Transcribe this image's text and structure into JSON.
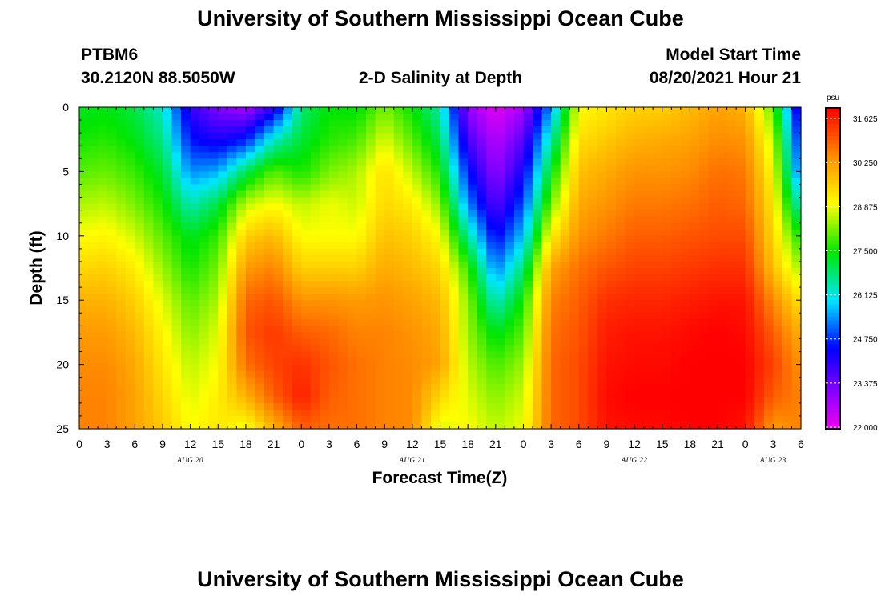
{
  "title_top": "University of Southern Mississippi Ocean Cube",
  "title_bottom": "University of Southern Mississippi Ocean Cube",
  "station": {
    "id": "PTBM6",
    "location": "30.2120N  88.5050W"
  },
  "model": {
    "label": "Model Start Time",
    "time": "08/20/2021 Hour 21"
  },
  "chart_data": {
    "type": "heatmap",
    "title": "2-D Salinity at Depth",
    "xlabel": "Forecast Time(Z)",
    "ylabel": "Depth (ft)",
    "x_range_hours": [
      0,
      78
    ],
    "ylim": [
      0,
      25
    ],
    "y_ticks": [
      "0",
      "5",
      "10",
      "15",
      "20",
      "25"
    ],
    "x_ticks": [
      "0",
      "3",
      "6",
      "9",
      "12",
      "15",
      "18",
      "21",
      "0",
      "3",
      "6",
      "9",
      "12",
      "15",
      "18",
      "21",
      "0",
      "3",
      "6",
      "9",
      "12",
      "15",
      "18",
      "21",
      "0",
      "3",
      "6"
    ],
    "day_labels": [
      {
        "label": "AUG 20",
        "hour": 12
      },
      {
        "label": "AUG 21",
        "hour": 36
      },
      {
        "label": "AUG 22",
        "hour": 60
      },
      {
        "label": "AUG 23",
        "hour": 75
      }
    ],
    "colorbar": {
      "unit": "psu",
      "min": 22.0,
      "max": 32.0,
      "tick_labels": [
        "22.000",
        "23.375",
        "24.750",
        "26.125",
        "27.500",
        "28.875",
        "30.250",
        "31.625"
      ]
    },
    "salinity_profiles_psu": {
      "depths_ft": [
        0,
        2.5,
        5,
        7.5,
        10,
        12.5,
        15,
        17.5,
        20,
        22.5,
        25
      ],
      "columns": [
        {
          "hour": 0,
          "values": [
            27.3,
            27.6,
            28.0,
            28.5,
            29.0,
            29.5,
            30.0,
            30.3,
            30.5,
            30.6,
            30.6
          ]
        },
        {
          "hour": 3,
          "values": [
            27.4,
            27.7,
            28.1,
            28.6,
            29.1,
            29.6,
            30.0,
            30.3,
            30.5,
            30.6,
            30.6
          ]
        },
        {
          "hour": 6,
          "values": [
            27.1,
            27.4,
            27.8,
            28.2,
            28.7,
            29.2,
            29.6,
            29.9,
            30.1,
            30.2,
            30.2
          ]
        },
        {
          "hour": 9,
          "values": [
            26.3,
            26.7,
            27.2,
            27.6,
            28.0,
            28.4,
            28.8,
            29.1,
            29.3,
            29.5,
            29.7
          ]
        },
        {
          "hour": 12,
          "values": [
            24.0,
            24.6,
            25.4,
            26.4,
            27.3,
            27.6,
            28.0,
            28.3,
            28.6,
            28.8,
            29.0
          ]
        },
        {
          "hour": 15,
          "values": [
            23.2,
            24.2,
            25.6,
            27.1,
            27.8,
            28.2,
            28.5,
            28.8,
            29.0,
            29.2,
            29.3
          ]
        },
        {
          "hour": 18,
          "values": [
            22.8,
            24.6,
            27.0,
            28.6,
            29.6,
            30.3,
            30.9,
            31.1,
            30.8,
            30.0,
            28.9
          ]
        },
        {
          "hour": 21,
          "values": [
            24.0,
            26.3,
            28.0,
            29.0,
            29.9,
            30.6,
            31.1,
            31.4,
            31.3,
            31.0,
            30.0
          ]
        },
        {
          "hour": 24,
          "values": [
            26.8,
            27.2,
            27.6,
            28.6,
            29.0,
            29.6,
            30.4,
            31.0,
            31.5,
            31.7,
            31.0
          ]
        },
        {
          "hour": 27,
          "values": [
            27.5,
            27.7,
            28.2,
            28.9,
            29.0,
            29.6,
            30.4,
            30.9,
            31.1,
            31.0,
            30.8
          ]
        },
        {
          "hour": 30,
          "values": [
            27.4,
            27.9,
            28.5,
            28.7,
            29.0,
            29.6,
            30.3,
            30.6,
            30.8,
            30.8,
            30.8
          ]
        },
        {
          "hour": 33,
          "values": [
            28.2,
            28.8,
            29.4,
            29.5,
            29.8,
            30.1,
            30.4,
            30.6,
            30.6,
            30.6,
            30.6
          ]
        },
        {
          "hour": 36,
          "values": [
            27.5,
            28.0,
            28.6,
            29.2,
            29.6,
            29.9,
            30.2,
            30.4,
            30.5,
            30.5,
            30.5
          ]
        },
        {
          "hour": 39,
          "values": [
            26.5,
            27.0,
            27.6,
            28.3,
            29.0,
            29.5,
            29.9,
            30.1,
            30.2,
            29.5,
            28.8
          ]
        },
        {
          "hour": 42,
          "values": [
            23.0,
            23.8,
            24.6,
            25.4,
            26.6,
            27.8,
            28.3,
            28.4,
            28.6,
            28.8,
            29.0
          ]
        },
        {
          "hour": 45,
          "values": [
            22.1,
            22.6,
            23.0,
            23.6,
            24.4,
            25.3,
            26.3,
            27.3,
            27.9,
            28.3,
            28.6
          ]
        },
        {
          "hour": 48,
          "values": [
            22.8,
            23.6,
            24.3,
            25.0,
            25.8,
            26.8,
            27.6,
            28.0,
            28.4,
            28.7,
            28.9
          ]
        },
        {
          "hour": 51,
          "values": [
            25.5,
            26.5,
            27.4,
            28.2,
            29.2,
            30.2,
            30.6,
            30.8,
            30.9,
            30.9,
            30.9
          ]
        },
        {
          "hour": 54,
          "values": [
            29.0,
            29.4,
            29.8,
            30.1,
            30.4,
            30.8,
            31.0,
            31.1,
            31.2,
            31.2,
            31.2
          ]
        },
        {
          "hour": 57,
          "values": [
            29.3,
            29.7,
            30.1,
            30.4,
            30.7,
            31.1,
            31.5,
            31.7,
            31.8,
            31.9,
            31.8
          ]
        },
        {
          "hour": 60,
          "values": [
            29.6,
            30.0,
            30.4,
            30.7,
            31.0,
            31.3,
            31.6,
            31.8,
            31.9,
            32.0,
            31.9
          ]
        },
        {
          "hour": 63,
          "values": [
            29.6,
            30.1,
            30.4,
            30.7,
            31.0,
            31.3,
            31.6,
            31.8,
            31.9,
            32.0,
            31.9
          ]
        },
        {
          "hour": 66,
          "values": [
            29.9,
            30.2,
            30.5,
            30.8,
            31.1,
            31.4,
            31.7,
            31.9,
            32.0,
            32.0,
            32.0
          ]
        },
        {
          "hour": 69,
          "values": [
            30.2,
            30.5,
            30.8,
            31.0,
            31.2,
            31.5,
            31.8,
            32.0,
            32.0,
            32.0,
            32.0
          ]
        },
        {
          "hour": 72,
          "values": [
            30.0,
            30.4,
            30.7,
            30.9,
            31.2,
            31.5,
            31.8,
            31.9,
            32.0,
            32.0,
            31.8
          ]
        },
        {
          "hour": 75,
          "values": [
            28.0,
            28.6,
            29.0,
            29.3,
            29.5,
            29.8,
            30.5,
            31.0,
            31.3,
            31.0,
            30.3
          ]
        },
        {
          "hour": 78,
          "values": [
            23.8,
            24.4,
            25.0,
            26.2,
            27.5,
            28.4,
            29.3,
            30.0,
            30.4,
            30.6,
            30.6
          ]
        }
      ]
    }
  }
}
